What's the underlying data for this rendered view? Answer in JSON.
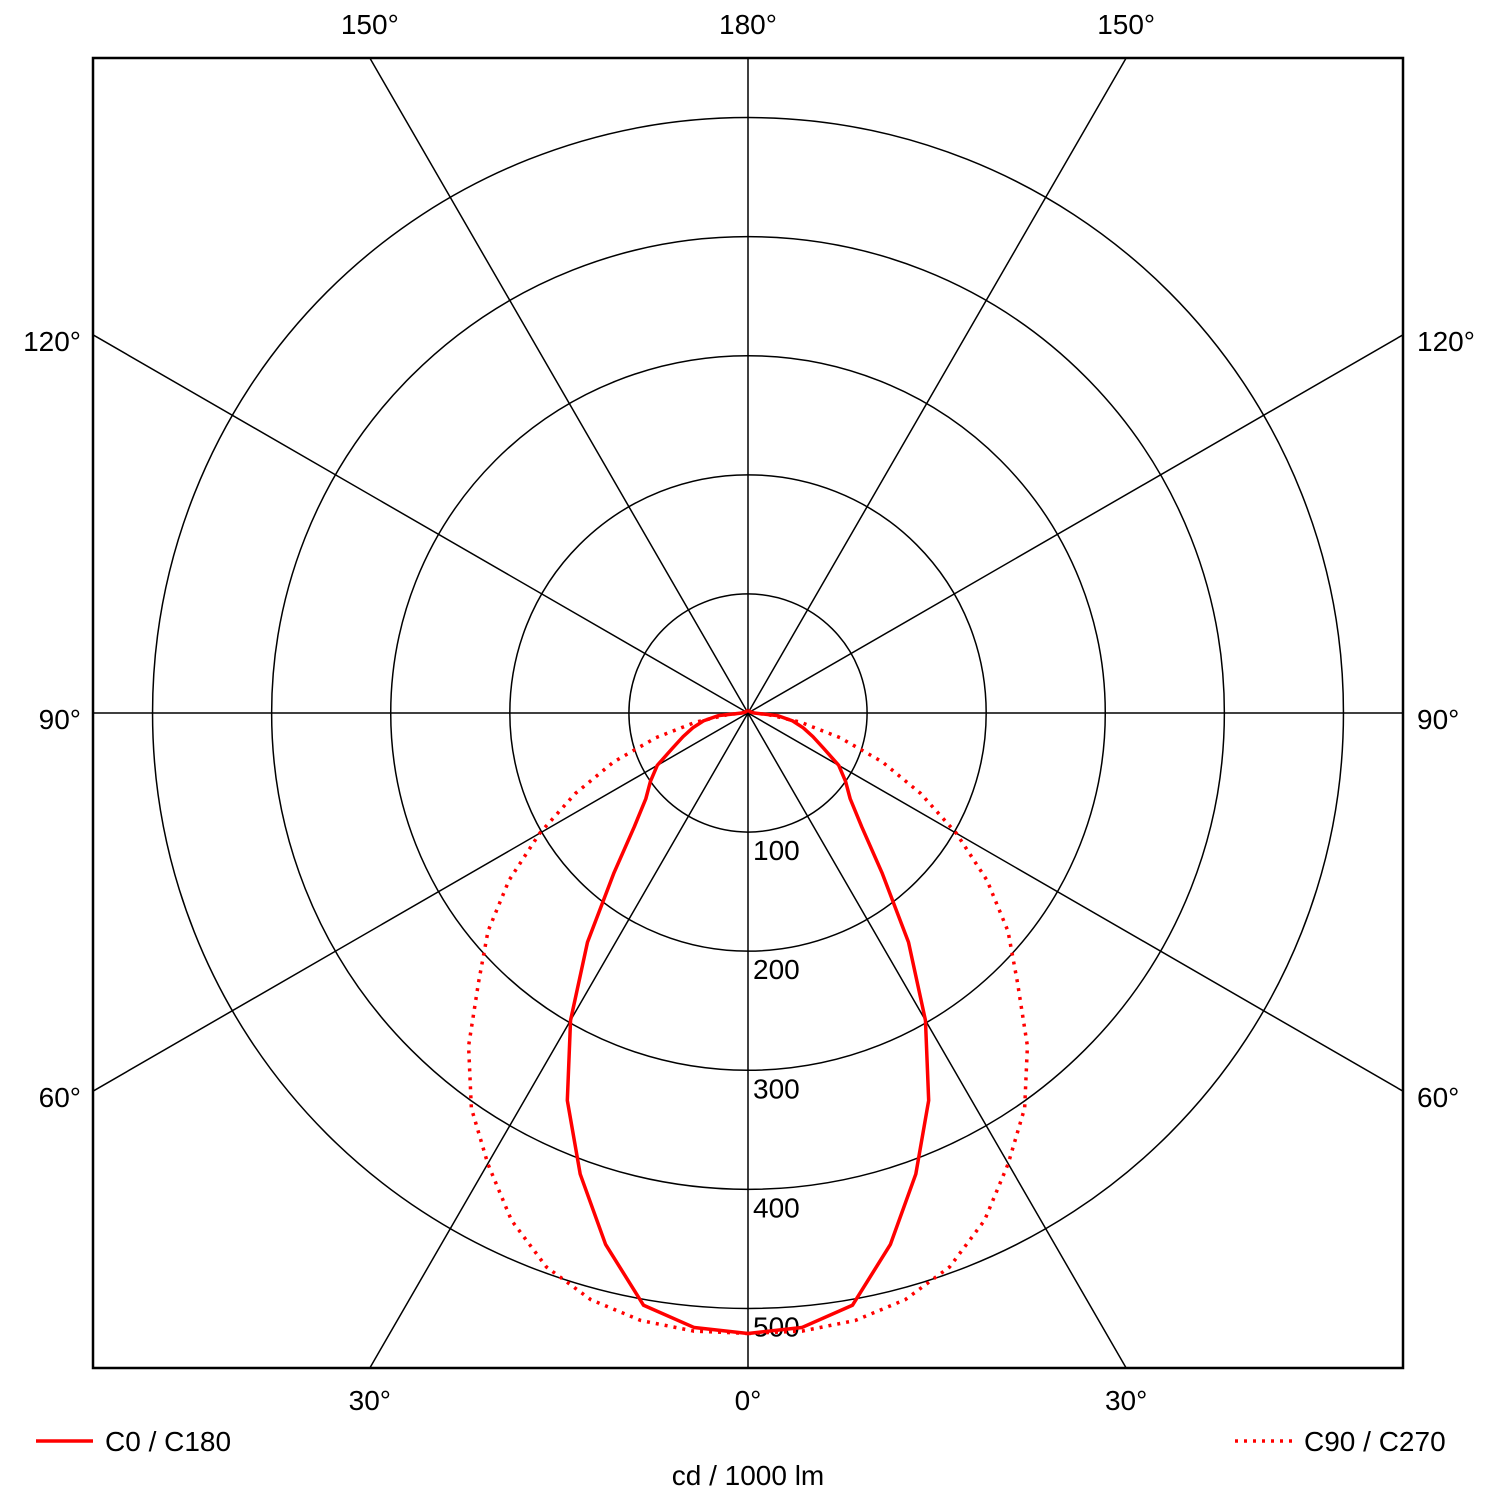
{
  "chart_data": {
    "type": "polar",
    "r_label": "cd / 1000 lm",
    "rlim": [
      0,
      550
    ],
    "rticks": [
      100,
      200,
      300,
      400,
      500
    ],
    "angle_ticks": [
      {
        "value": 0,
        "label": "0°"
      },
      {
        "value": 30,
        "label": "30°"
      },
      {
        "value": 60,
        "label": "60°"
      },
      {
        "value": 90,
        "label": "90°"
      },
      {
        "value": 120,
        "label": "120°"
      },
      {
        "value": 150,
        "label": "150°"
      },
      {
        "value": 180,
        "label": "180°"
      }
    ],
    "x": [
      0,
      5,
      10,
      15,
      20,
      25,
      30,
      35,
      40,
      45,
      50,
      55,
      60,
      65,
      70,
      75,
      80,
      85,
      90,
      120,
      150,
      180
    ],
    "series": [
      {
        "name": "C0 / C180",
        "color": "#ff0000",
        "style": "solid",
        "values": [
          521,
          518,
          505,
          462,
          412,
          359,
          298,
          235,
          175,
          135,
          112,
          100,
          88,
          70,
          58,
          48,
          38,
          25,
          5,
          2,
          2,
          2
        ]
      },
      {
        "name": "C90 / C270",
        "color": "#ff0000",
        "style": "dotted",
        "values": [
          521,
          521,
          518,
          510,
          495,
          470,
          437,
          405,
          365,
          320,
          285,
          245,
          202,
          160,
          120,
          80,
          45,
          18,
          5,
          2,
          2,
          2
        ]
      }
    ],
    "legend": "bottom",
    "grid": true
  }
}
